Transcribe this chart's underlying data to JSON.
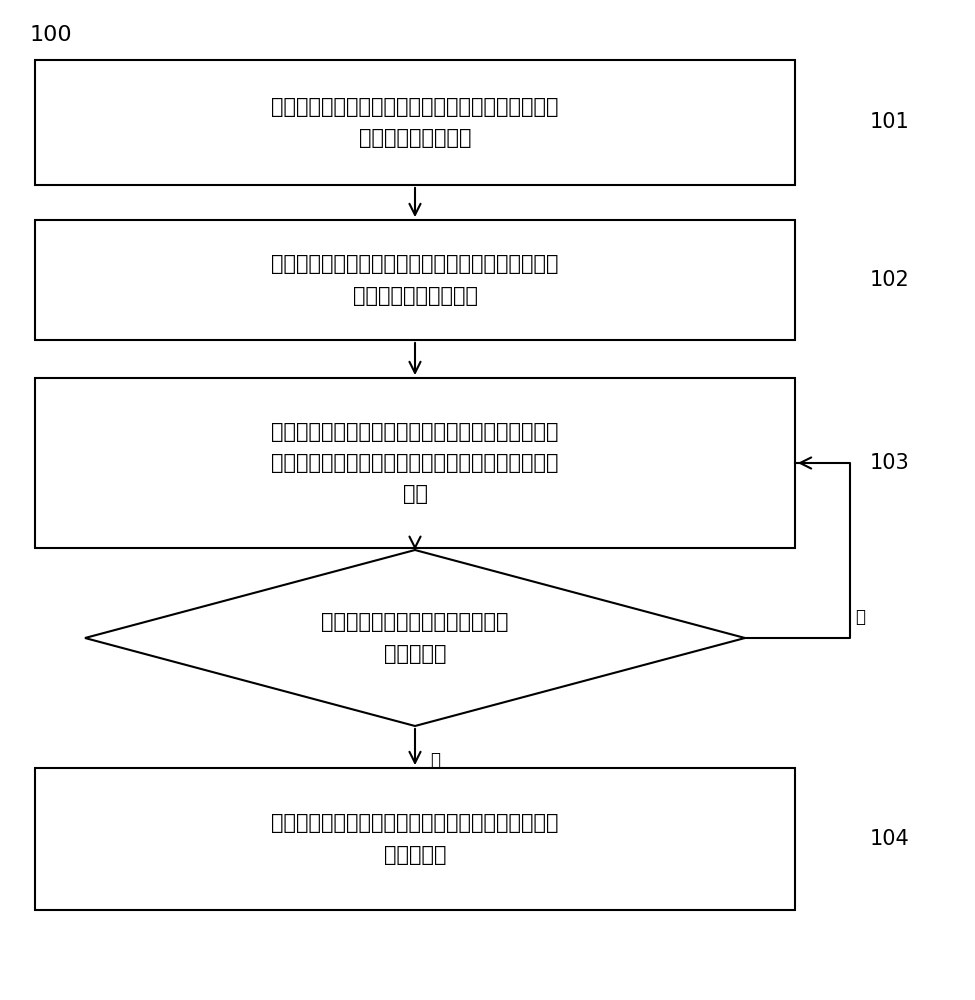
{
  "bg_color": "#ffffff",
  "box_edge_color": "#000000",
  "box_fill_color": "#ffffff",
  "text_color": "#000000",
  "title": "100",
  "step_labels": [
    "101",
    "102",
    "103",
    "104"
  ],
  "box_texts": [
    "根据实测的地面合成电场数据的缺失值写入规则对缺\n失值进行判断并剔除",
    "利用拉依达准则法对实测的地面合成电场数据的异常\n值分段进行判断并剔除",
    "利用线性回归方法对地面合成电场数据中被剔除的缺\n失值和异常值进行弥补，获取弥补后的地面合成电场\n数据",
    "利用奇异值分解滤除弥补后的地面合成电场数据中的\n随机干扰值"
  ],
  "diamond_text": "判断弥补后的地面合成电场数据是\n否符合预期",
  "yes_text": "是",
  "no_text": "否",
  "lw": 1.5,
  "font_size": 15,
  "label_font_size": 15,
  "title_font_size": 16
}
